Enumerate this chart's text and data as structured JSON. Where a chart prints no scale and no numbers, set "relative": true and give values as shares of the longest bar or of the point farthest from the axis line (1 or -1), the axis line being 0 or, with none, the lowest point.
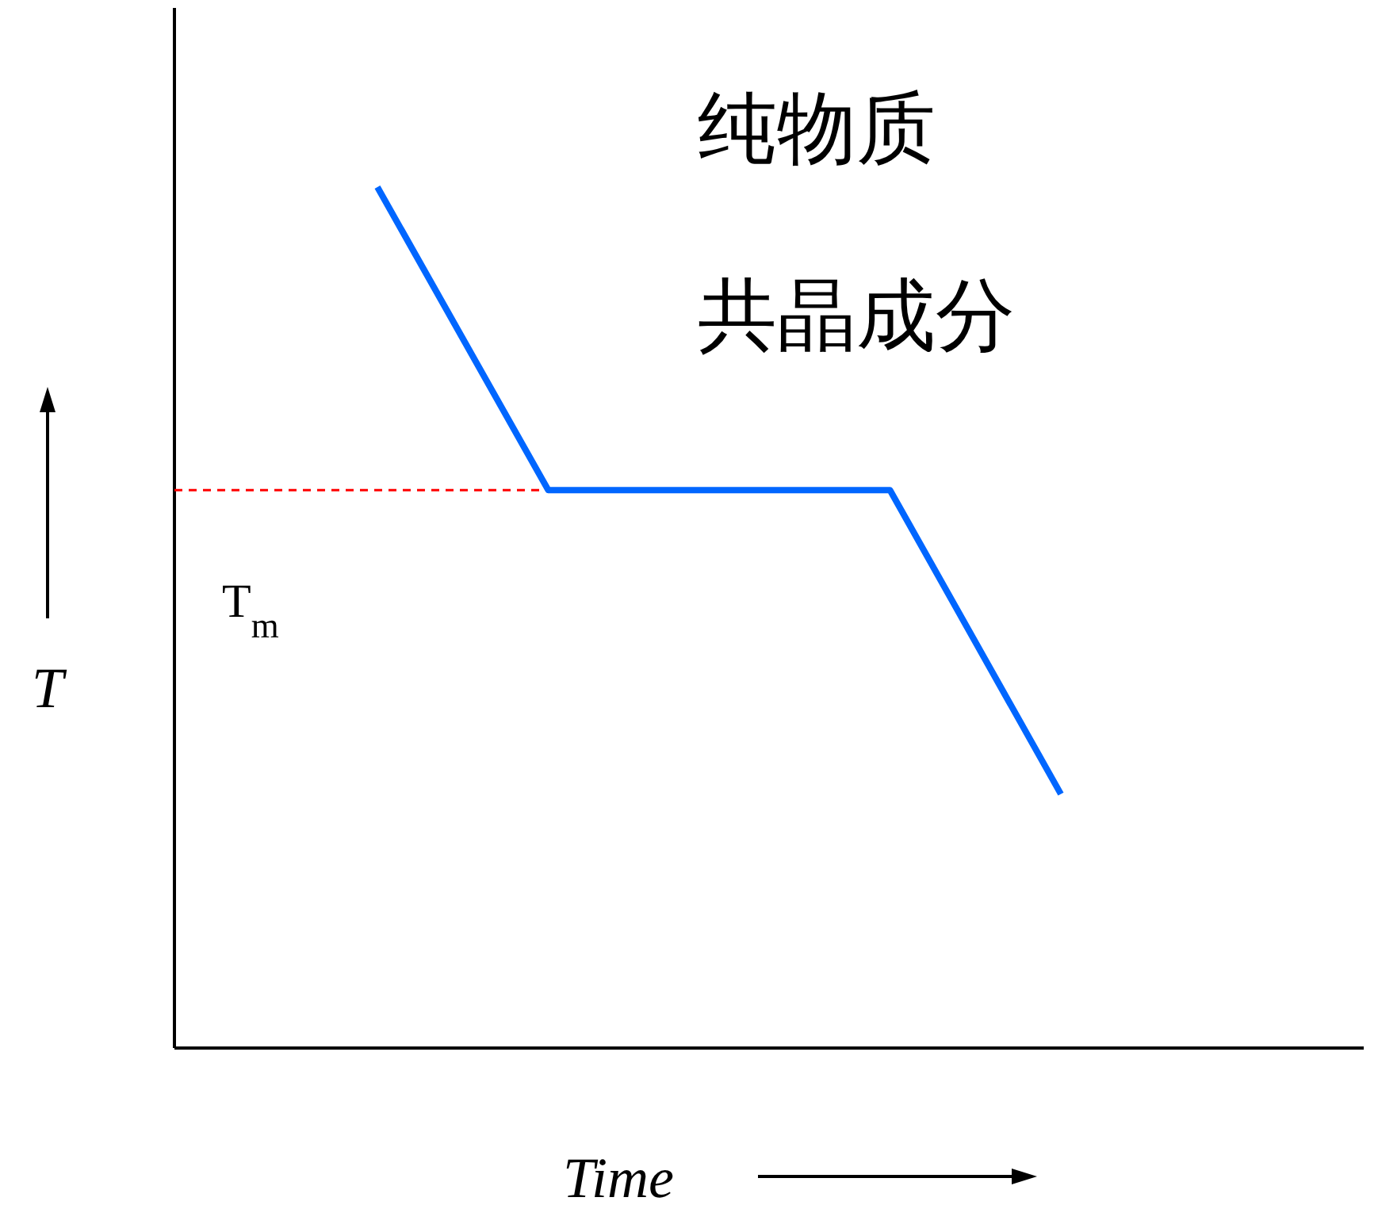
{
  "chart_data": {
    "type": "line",
    "relative": true,
    "xlabel": "Time",
    "ylabel": "T",
    "categories": [
      null,
      null,
      null,
      null,
      null
    ],
    "series": [
      {
        "color": "#0066ff",
        "values": [
          1,
          0.648,
          0.648,
          0.648,
          0.295
        ]
      }
    ],
    "ref_lines": [
      {
        "axis": "y",
        "value": 0.648,
        "label": "T$_{m}$",
        "color": "#ff0000",
        "line_style": "dashed"
      }
    ],
    "annotations": [
      "纯物质",
      "共晶成分"
    ]
  }
}
